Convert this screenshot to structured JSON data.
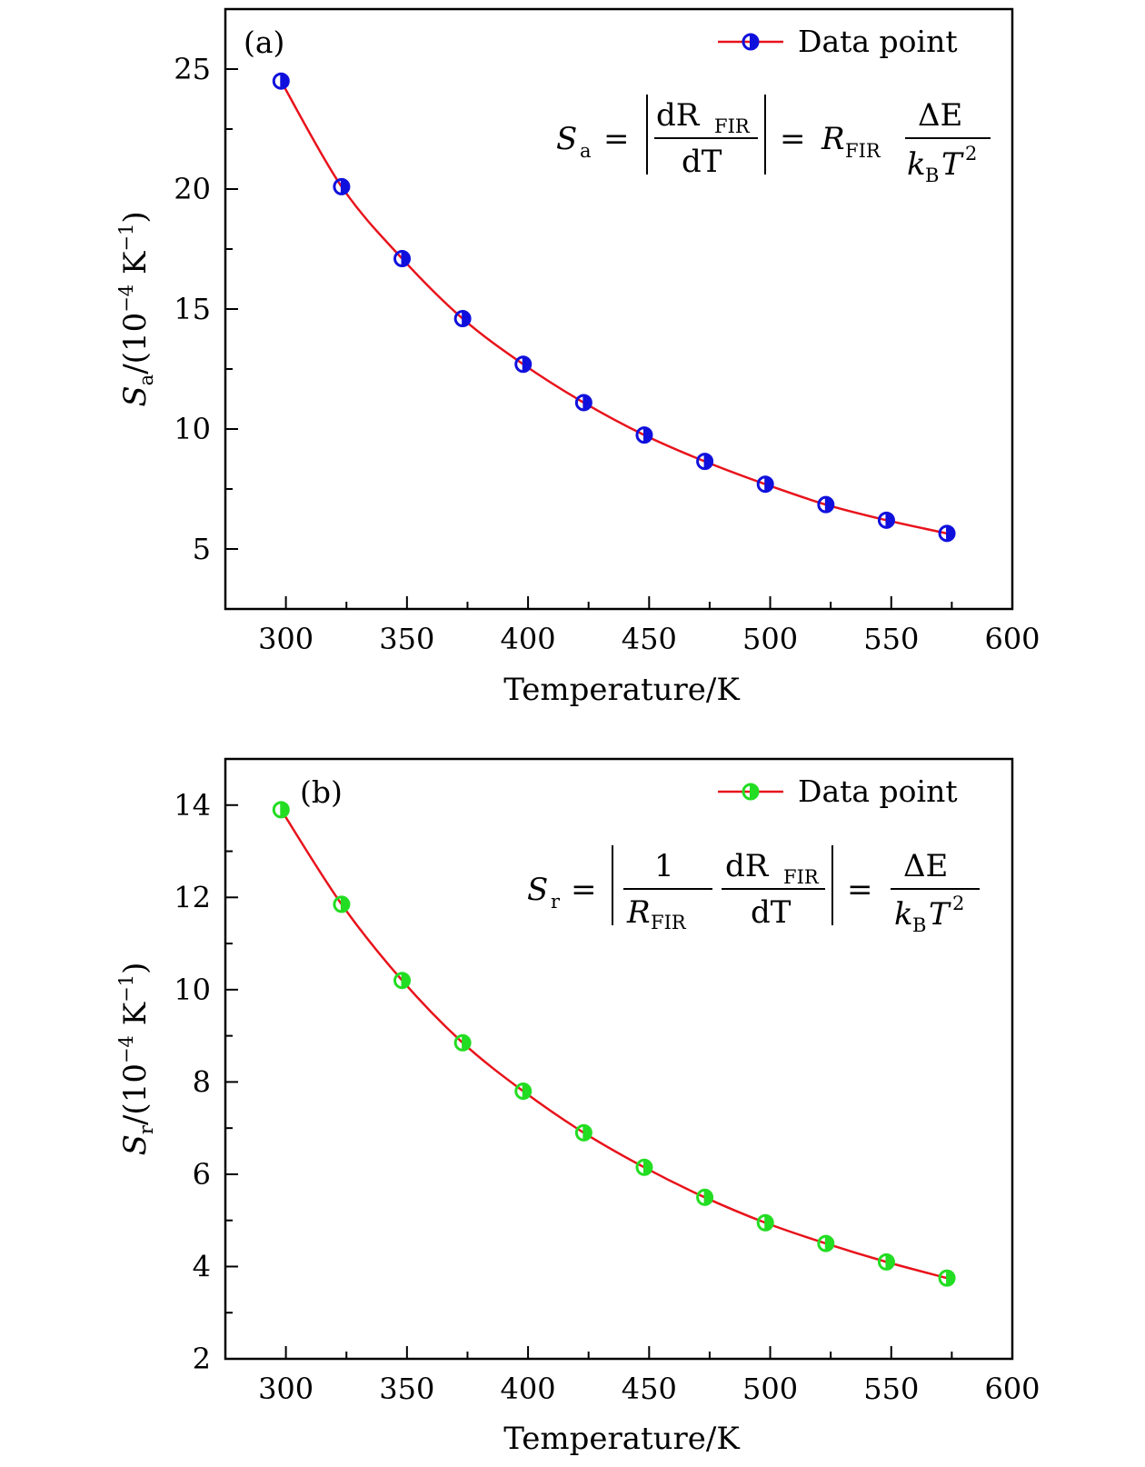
{
  "chart_data": [
    {
      "type": "line",
      "panel_label": "(a)",
      "xlabel": "Temperature/K",
      "ylabel_main": "S",
      "ylabel_sub": "a",
      "ylabel_rest": "/(10",
      "ylabel_exp": "−4",
      "ylabel_unit": "K",
      "ylabel_unit_exp": "−1",
      "ylabel_close": ")",
      "xlim": [
        275,
        600
      ],
      "ylim": [
        2.5,
        27.5
      ],
      "xticks": [
        300,
        350,
        400,
        450,
        500,
        550,
        600
      ],
      "yticks": [
        5,
        10,
        15,
        20,
        25
      ],
      "legend": "Data point",
      "line_color": "#e8121b",
      "marker_color": "#1010dd",
      "x": [
        298,
        323,
        348,
        373,
        398,
        423,
        448,
        473,
        498,
        523,
        548,
        573
      ],
      "y": [
        24.5,
        20.1,
        17.1,
        14.6,
        12.7,
        11.1,
        9.75,
        8.65,
        7.7,
        6.85,
        6.2,
        5.65
      ],
      "formula": {
        "lhs": "S",
        "lhs_sub": "a",
        "eq1": "=",
        "frac1_num": "dR",
        "frac1_num_sub": "FIR",
        "frac1_den": "dT",
        "eq2": "=",
        "mid": "R",
        "mid_sub": "FIR",
        "frac2_num": "ΔE",
        "frac2_den": "k",
        "frac2_den_sub": "B",
        "frac2_den_rest": "T",
        "frac2_den_exp": "2"
      }
    },
    {
      "type": "line",
      "panel_label": "(b)",
      "xlabel": "Temperature/K",
      "ylabel_main": "S",
      "ylabel_sub": "r",
      "ylabel_rest": "/(10",
      "ylabel_exp": "−4",
      "ylabel_unit": "K",
      "ylabel_unit_exp": "−1",
      "ylabel_close": ")",
      "xlim": [
        275,
        600
      ],
      "ylim": [
        2,
        15
      ],
      "xticks": [
        300,
        350,
        400,
        450,
        500,
        550,
        600
      ],
      "yticks": [
        2,
        4,
        6,
        8,
        10,
        12,
        14
      ],
      "legend": "Data point",
      "line_color": "#e8121b",
      "marker_color": "#22dd22",
      "x": [
        298,
        323,
        348,
        373,
        398,
        423,
        448,
        473,
        498,
        523,
        548,
        573
      ],
      "y": [
        13.9,
        11.85,
        10.2,
        8.85,
        7.8,
        6.9,
        6.15,
        5.5,
        4.95,
        4.5,
        4.1,
        3.75
      ],
      "formula": {
        "lhs": "S",
        "lhs_sub": "r",
        "eq1": "=",
        "frac1_num": "1",
        "frac1_den": "R",
        "frac1_den_sub": "FIR",
        "frac3_num": "dR",
        "frac3_num_sub": "FIR",
        "frac3_den": "dT",
        "eq2": "=",
        "frac2_num": "ΔE",
        "frac2_den": "k",
        "frac2_den_sub": "B",
        "frac2_den_rest": "T",
        "frac2_den_exp": "2"
      }
    }
  ]
}
